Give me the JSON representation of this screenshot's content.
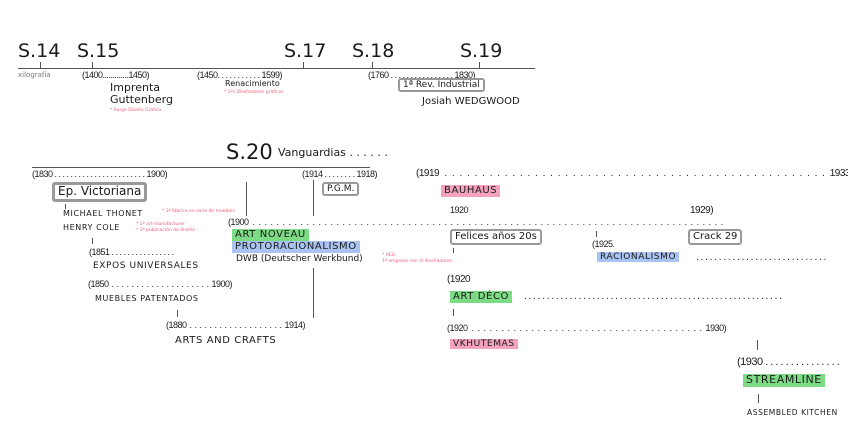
{
  "centuries": {
    "s14": "S.14",
    "s15": "S.15",
    "s17": "S.17",
    "s18": "S.18",
    "s19": "S.19"
  },
  "top": {
    "xilografia": "xilografía",
    "r1400": "(1400.............1450)",
    "r1450": "(1450. . . . . . . . . . . 1599)",
    "imprenta": "Imprenta",
    "guttenberg": "Guttenberg",
    "note_gutt": "* Surge Diseño Gráfico",
    "renacimiento": "Renacimiento",
    "note_renac": "* 1ºs Diseñadores gráficos",
    "r1760": "(1760 . . . . . . . . . . . . . . . . 1830)",
    "rev_industrial": "1ª Rev. Industrial",
    "wedgwood": "Josiah WEDGWOOD"
  },
  "s20": {
    "title": "S.20",
    "vanguardias": "Vanguardias . . . . . .",
    "r1830": "(1830 . . . . . . . . . . . . . . . . . . . . . . . 1900)",
    "r1914": "(1914 . . . . . . . . 1918)",
    "r1919": "(1919 . . . . . . . . . . . . . . . . . . . . . . . . . . . . . . . . . . . . . . . . . . . . . . . . . . . 1933)",
    "victoriana": "Ep. Victoriana",
    "pgm": "P.G.M.",
    "bauhaus": "BAUHAUS",
    "thonet": "MICHAEL THONET",
    "note_thonet": "* 1ª fábrica en serie de muebles",
    "cole": "HENRY COLE",
    "note_cole1": "* 1º art-manufacturer",
    "note_cole2": "* 1ª publicación de diseño",
    "r1900": "(1900 . . . . . . . . . . . . . . . . . . . . . . . . . . . . . . . . . . . . . . . . . . . . . . . . . . . . . . . . . . . . . . . . . . . . . . . . . . . . . . .",
    "y1920": "1920",
    "y1929": "1929)",
    "art_noveau": "ART NOVEAU",
    "protoracionalismo": "PROTORACIONALISMO",
    "dwb": "DWB (Deutscher Werkbund)",
    "note_dwb1": "* AEG",
    "note_dwb2": "1ª empresa con di diseñadores",
    "felices": "Felices años 20s",
    "crack": "Crack 29",
    "r1925": "(1925.",
    "racionalismo": "RACIONALISMO",
    "racionalismo_dots": ". . . . . . . . . . . . . . . . . . . . . . . . . . . . .",
    "r1851": "(1851 . . . . . . . . . . . . . . . .",
    "expos": "EXPOS UNIVERSALES",
    "r1850": "(1850 . . . . . . . . . . . . . . . . . . . . 1900)",
    "muebles": "MUEBLES PATENTADOS",
    "r1920a": "(1920",
    "art_deco": "ART DÉCO",
    "art_deco_dots": ". . . . . . . . . . . . . . . . . . . . . . . . . . . . . . . . . . . . . . . . . . . . . . . . . . . . . . . . .",
    "r1880": "(1880 . . . . . . . . . . . . . . . . . . . 1914)",
    "arts_crafts": "ARTS AND CRAFTS",
    "r1920b": "(1920 . . . . . . . . . . . . . . . . . . . . . . . . . . . . . . . . . . . . . . . 1930)",
    "vkhutemas": "VKHUTEMAS",
    "r1930": "(1930 . . . . . . . . . . . . . . .",
    "streamline": "STREAMLINE",
    "kitchen": "ASSEMBLED KITCHEN"
  },
  "colors": {
    "green": "#7ddb85",
    "blue": "#a9c4f2",
    "pink": "#f4a3bf",
    "note": "#f0607a"
  }
}
